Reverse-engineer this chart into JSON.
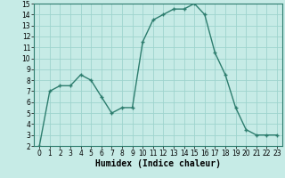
{
  "x": [
    0,
    1,
    2,
    3,
    4,
    5,
    6,
    7,
    8,
    9,
    10,
    11,
    12,
    13,
    14,
    15,
    16,
    17,
    18,
    19,
    20,
    21,
    22,
    23
  ],
  "y": [
    2,
    7,
    7.5,
    7.5,
    8.5,
    8,
    6.5,
    5,
    5.5,
    5.5,
    11.5,
    13.5,
    14,
    14.5,
    14.5,
    15,
    14,
    10.5,
    8.5,
    5.5,
    3.5,
    3,
    3,
    3
  ],
  "line_color": "#2d7d6e",
  "marker": "+",
  "marker_color": "#2d7d6e",
  "bg_color": "#c6ebe6",
  "grid_color": "#9ed4ce",
  "axis_label_color": "#1a5a50",
  "xlabel": "Humidex (Indice chaleur)",
  "xlabel_fontsize": 7,
  "ylim": [
    2,
    15
  ],
  "xlim": [
    -0.5,
    23.5
  ],
  "yticks": [
    2,
    3,
    4,
    5,
    6,
    7,
    8,
    9,
    10,
    11,
    12,
    13,
    14,
    15
  ],
  "xticks": [
    0,
    1,
    2,
    3,
    4,
    5,
    6,
    7,
    8,
    9,
    10,
    11,
    12,
    13,
    14,
    15,
    16,
    17,
    18,
    19,
    20,
    21,
    22,
    23
  ],
  "tick_fontsize": 5.5,
  "line_width": 1.0,
  "marker_size": 3.5
}
